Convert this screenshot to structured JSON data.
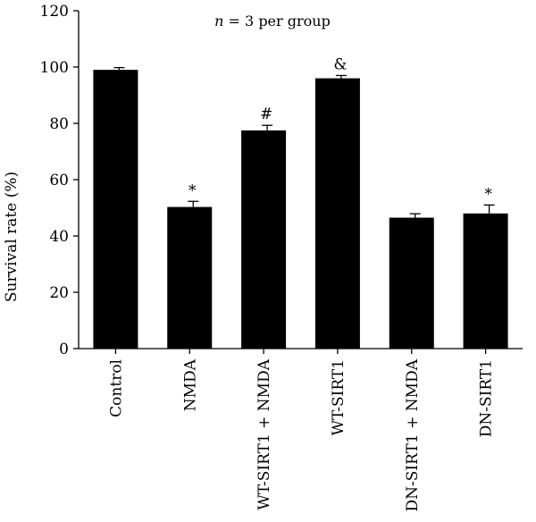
{
  "chart_data": {
    "type": "bar",
    "title": "n = 3 per group",
    "title_parts": {
      "italic": "n",
      "rest": " = 3 per group"
    },
    "ylabel": "Survival rate (%)",
    "xlabel": "",
    "ylim": [
      0,
      120
    ],
    "yticks": [
      0,
      20,
      40,
      60,
      80,
      100,
      120
    ],
    "categories": [
      "Control",
      "NMDA",
      "WT-SIRT1 + NMDA",
      "WT-SIRT1",
      "DN-SIRT1 + NMDA",
      "DN-SIRT1"
    ],
    "values": [
      99,
      50.3,
      77.5,
      96,
      46.5,
      48
    ],
    "errors": [
      0.8,
      2,
      1.8,
      1,
      1.4,
      3
    ],
    "annotations": [
      "",
      "*",
      "#",
      "&",
      "",
      "*"
    ],
    "bar_color": "#000000",
    "grid": false
  }
}
